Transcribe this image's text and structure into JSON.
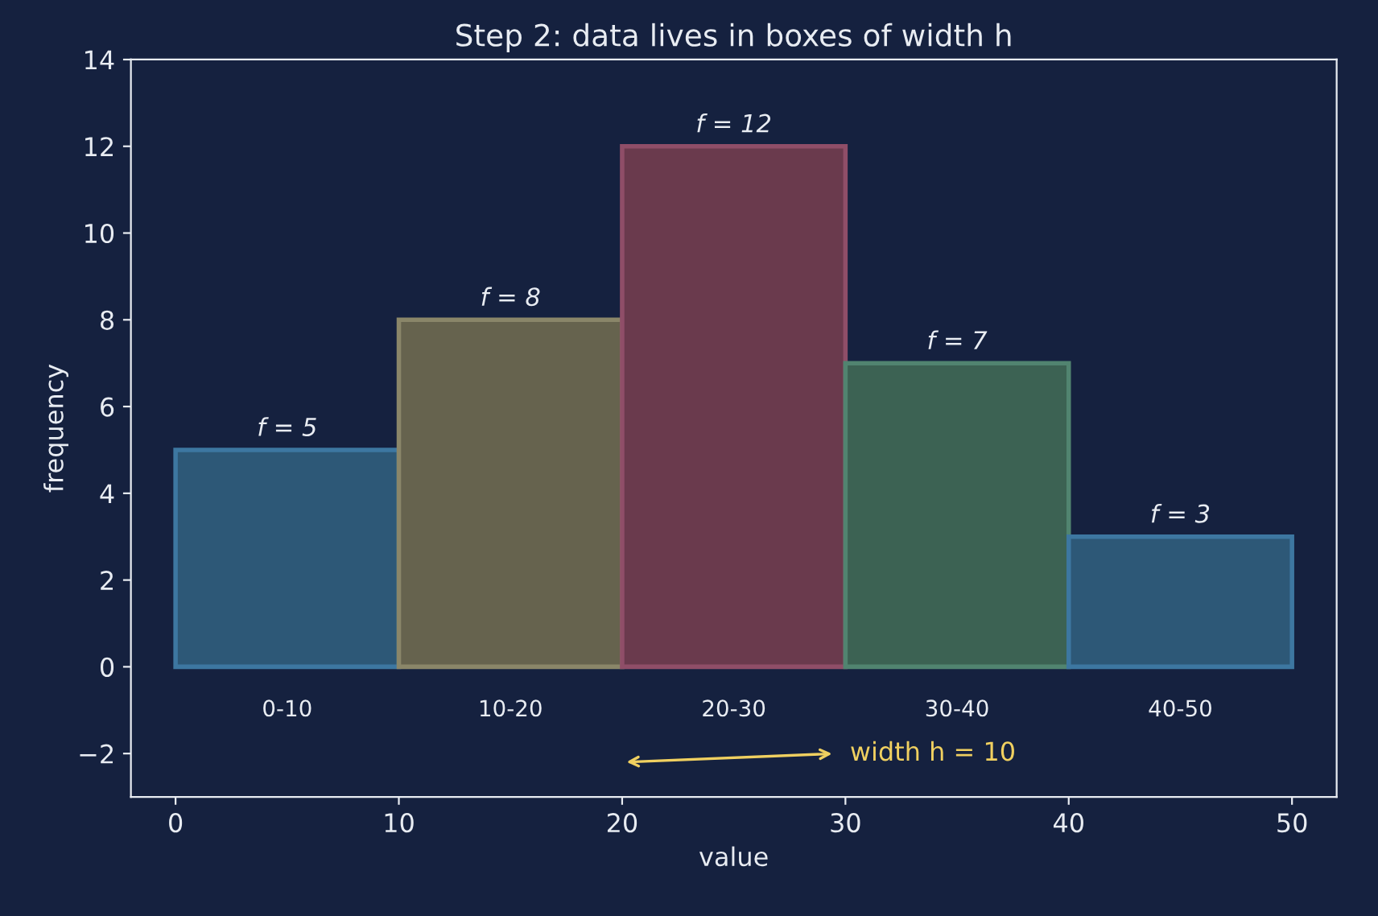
{
  "chart_data": {
    "type": "histogram",
    "title": "Step 2: data lives in boxes of width h",
    "xlabel": "value",
    "ylabel": "frequency",
    "bins": [
      0,
      10,
      20,
      30,
      40,
      50
    ],
    "values": [
      5,
      8,
      12,
      7,
      3
    ],
    "colors": [
      "#2d5877",
      "#66634e",
      "#6a3a4d",
      "#3c6253",
      "#2d5877"
    ],
    "value_labels": [
      "f = 5",
      "f = 8",
      "f = 12",
      "f = 7",
      "f = 3"
    ],
    "annotations": [
      "0-10",
      "10-20",
      "20-30",
      "30-40",
      "40-50",
      "width h = 10"
    ],
    "xlim": [
      -2,
      52
    ],
    "ylim": [
      -3,
      14
    ],
    "xticks": [
      0,
      10,
      20,
      30,
      40,
      50
    ],
    "yticks": [
      {
        "value": -2,
        "label": "−2"
      },
      0,
      2,
      4,
      6,
      8,
      10,
      12,
      14
    ],
    "grid": false,
    "legend": false
  }
}
